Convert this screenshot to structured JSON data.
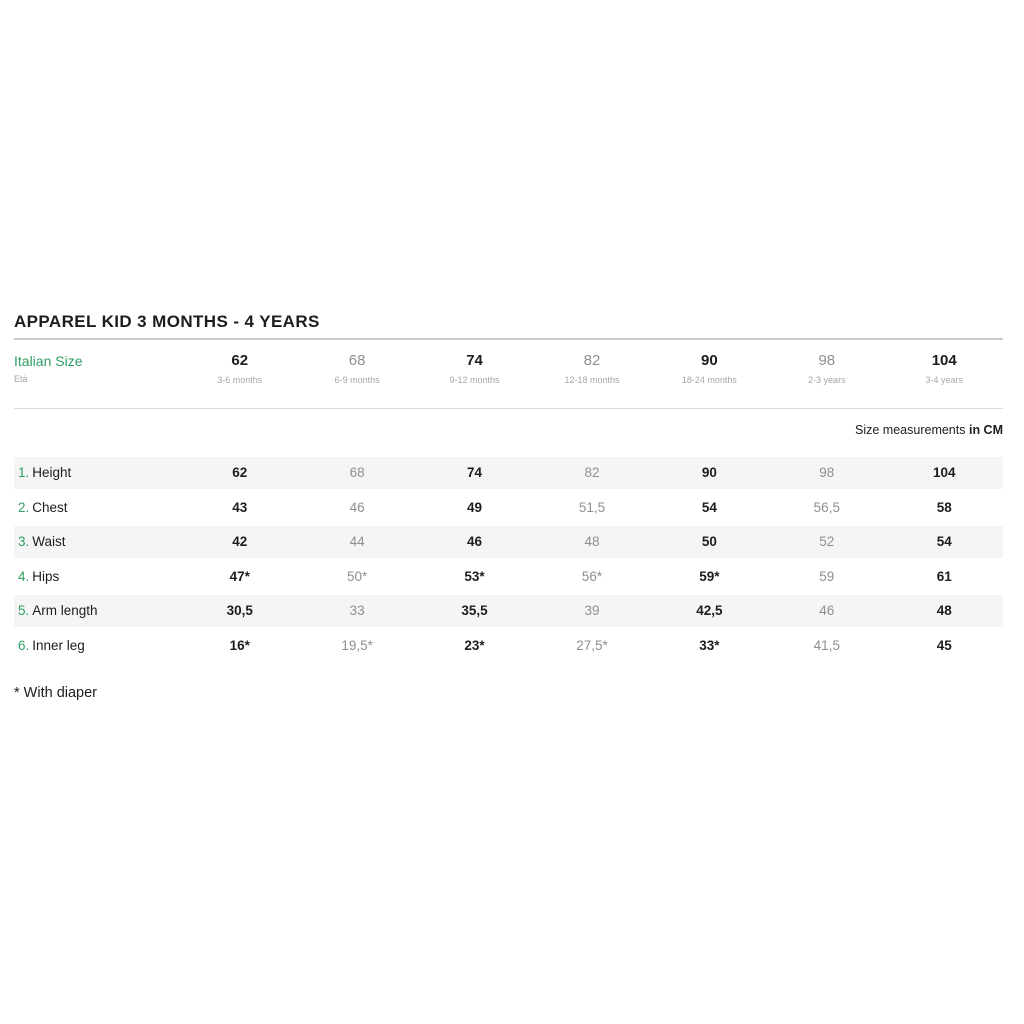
{
  "chart_data": {
    "type": "table",
    "title": "APPAREL KID 3 MONTHS - 4 YEARS",
    "row_header": {
      "label": "Italian Size",
      "sublabel": "Età"
    },
    "size_note": {
      "regular": "Size measurements",
      "bold": "in CM"
    },
    "columns": [
      {
        "size": "62",
        "age": "3-6 months"
      },
      {
        "size": "68",
        "age": "6-9 months"
      },
      {
        "size": "74",
        "age": "9-12 months"
      },
      {
        "size": "82",
        "age": "12-18 months"
      },
      {
        "size": "90",
        "age": "18-24 months"
      },
      {
        "size": "98",
        "age": "2-3 years"
      },
      {
        "size": "104",
        "age": "3-4 years"
      }
    ],
    "rows": [
      {
        "num": "1.",
        "label": "Height",
        "values": [
          "62",
          "68",
          "74",
          "82",
          "90",
          "98",
          "104"
        ]
      },
      {
        "num": "2.",
        "label": "Chest",
        "values": [
          "43",
          "46",
          "49",
          "51,5",
          "54",
          "56,5",
          "58"
        ]
      },
      {
        "num": "3.",
        "label": "Waist",
        "values": [
          "42",
          "44",
          "46",
          "48",
          "50",
          "52",
          "54"
        ]
      },
      {
        "num": "4.",
        "label": "Hips",
        "values": [
          "47*",
          "50*",
          "53*",
          "56*",
          "59*",
          "59",
          "61"
        ]
      },
      {
        "num": "5.",
        "label": "Arm length",
        "values": [
          "30,5",
          "33",
          "35,5",
          "39",
          "42,5",
          "46",
          "48"
        ]
      },
      {
        "num": "6.",
        "label": "Inner leg",
        "values": [
          "16*",
          "19,5*",
          "23*",
          "27,5*",
          "33*",
          "41,5",
          "45"
        ]
      }
    ],
    "footnote": "* With diaper",
    "unit": "CM"
  },
  "colors": {
    "accent_green": "#2f9e62",
    "text_dark": "#1d1d1b",
    "text_gray": "#8f8f8f",
    "sublabel_gray": "#a5a5a5",
    "stripe_bg": "#f5f5f5",
    "rule_gray": "#cbcbcb"
  }
}
